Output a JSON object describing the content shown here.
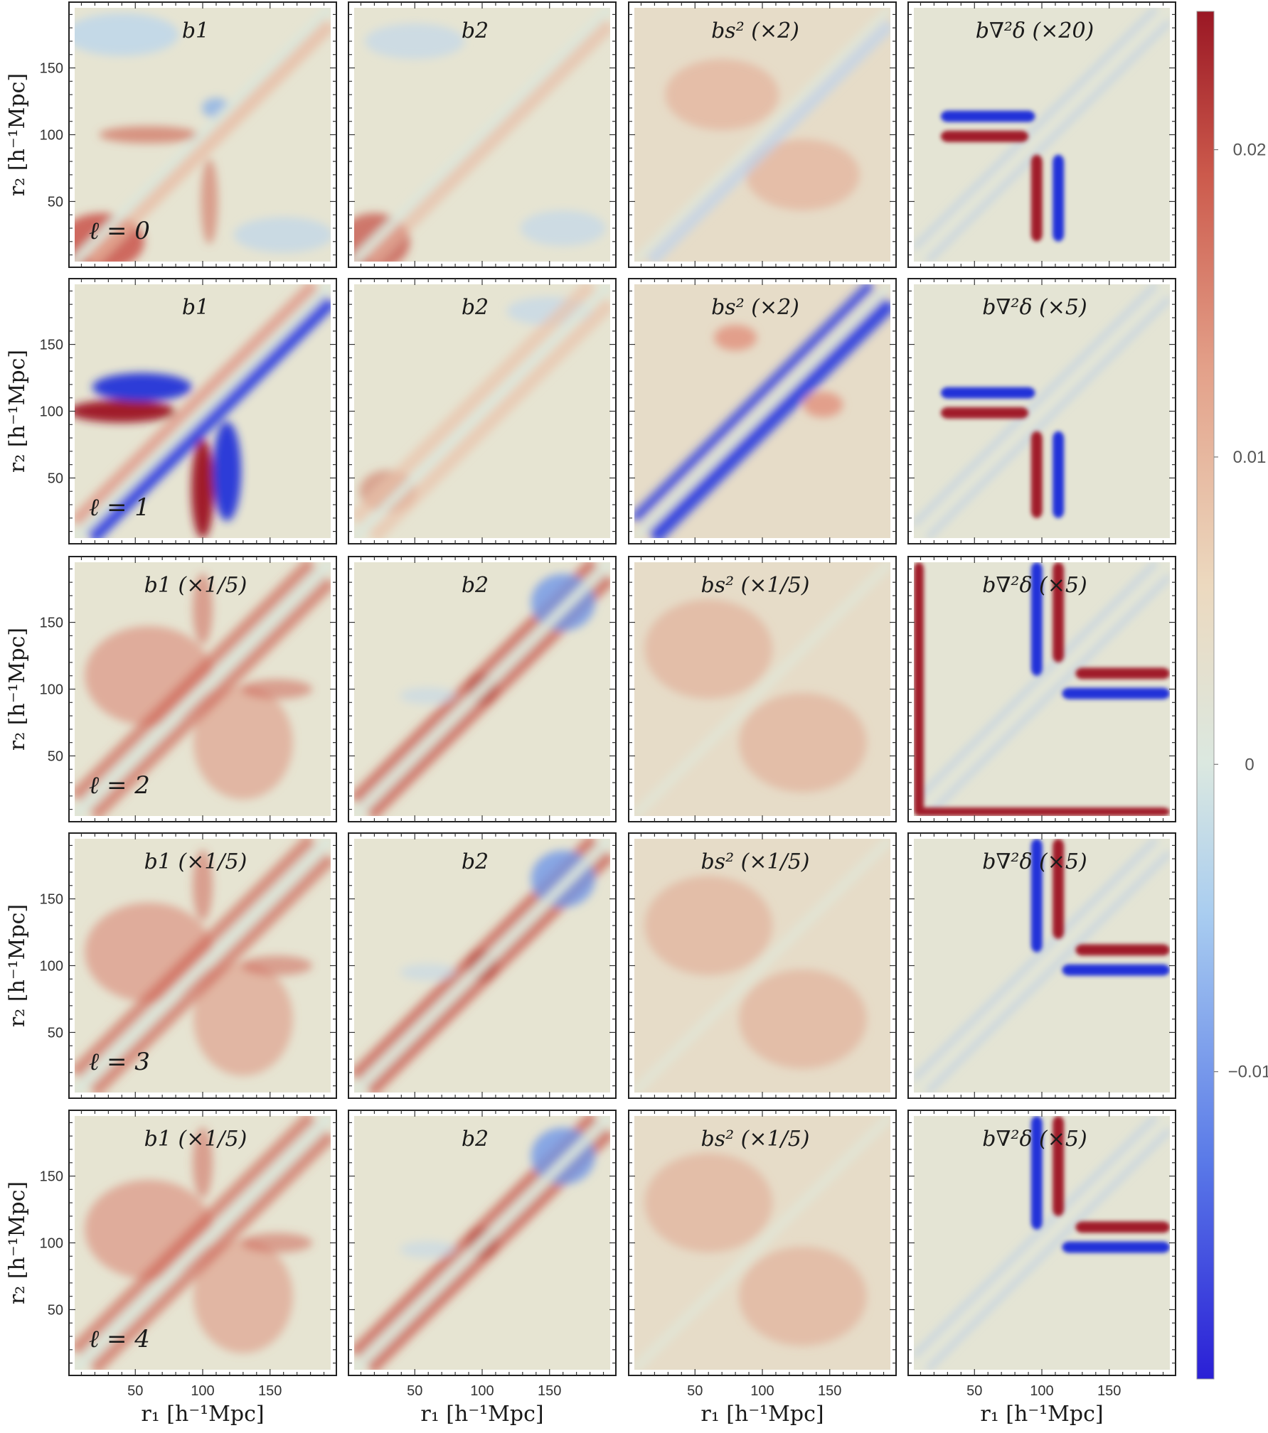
{
  "chart_data": {
    "type": "heatmap",
    "rows": [
      {
        "ell_label": "ℓ = 0",
        "panels": [
          {
            "label": "b1",
            "scale": ""
          },
          {
            "label": "b2",
            "scale": ""
          },
          {
            "label": "bs²",
            "scale": "(×2)"
          },
          {
            "label": "b∇²δ",
            "scale": "(×20)"
          }
        ]
      },
      {
        "ell_label": "ℓ = 1",
        "panels": [
          {
            "label": "b1",
            "scale": ""
          },
          {
            "label": "b2",
            "scale": ""
          },
          {
            "label": "bs²",
            "scale": "(×2)"
          },
          {
            "label": "b∇²δ",
            "scale": "(×5)"
          }
        ]
      },
      {
        "ell_label": "ℓ = 2",
        "panels": [
          {
            "label": "b1",
            "scale": "(×1/5)"
          },
          {
            "label": "b2",
            "scale": ""
          },
          {
            "label": "bs²",
            "scale": "(×1/5)"
          },
          {
            "label": "b∇²δ",
            "scale": "(×5)"
          }
        ]
      },
      {
        "ell_label": "ℓ = 3",
        "panels": [
          {
            "label": "b1",
            "scale": "(×1/5)"
          },
          {
            "label": "b2",
            "scale": ""
          },
          {
            "label": "bs²",
            "scale": "(×1/5)"
          },
          {
            "label": "b∇²δ",
            "scale": "(×5)"
          }
        ]
      },
      {
        "ell_label": "ℓ = 4",
        "panels": [
          {
            "label": "b1",
            "scale": "(×1/5)"
          },
          {
            "label": "b2",
            "scale": ""
          },
          {
            "label": "bs²",
            "scale": "(×1/5)"
          },
          {
            "label": "b∇²δ",
            "scale": "(×5)"
          }
        ]
      }
    ],
    "xlabel": "r₁ [h⁻¹Mpc]",
    "ylabel": "r₂ [h⁻¹Mpc]",
    "xlim": [
      5,
      195
    ],
    "ylim": [
      5,
      195
    ],
    "xticks": [
      50,
      100,
      150
    ],
    "yticks": [
      50,
      100,
      150
    ],
    "colorbar": {
      "range": [
        -0.02,
        0.0245
      ],
      "ticks": [
        {
          "value": 0.02,
          "label": "0.02"
        },
        {
          "value": 0.01,
          "label": "0.01"
        },
        {
          "value": 0,
          "label": "0"
        },
        {
          "value": -0.01,
          "label": "−0.01"
        }
      ],
      "colormap": [
        "#2a1fd6",
        "#5a7ae8",
        "#a9cdf0",
        "#dbe8e0",
        "#ecd9bf",
        "#e3a089",
        "#cc5a4c",
        "#9a1724"
      ]
    }
  }
}
